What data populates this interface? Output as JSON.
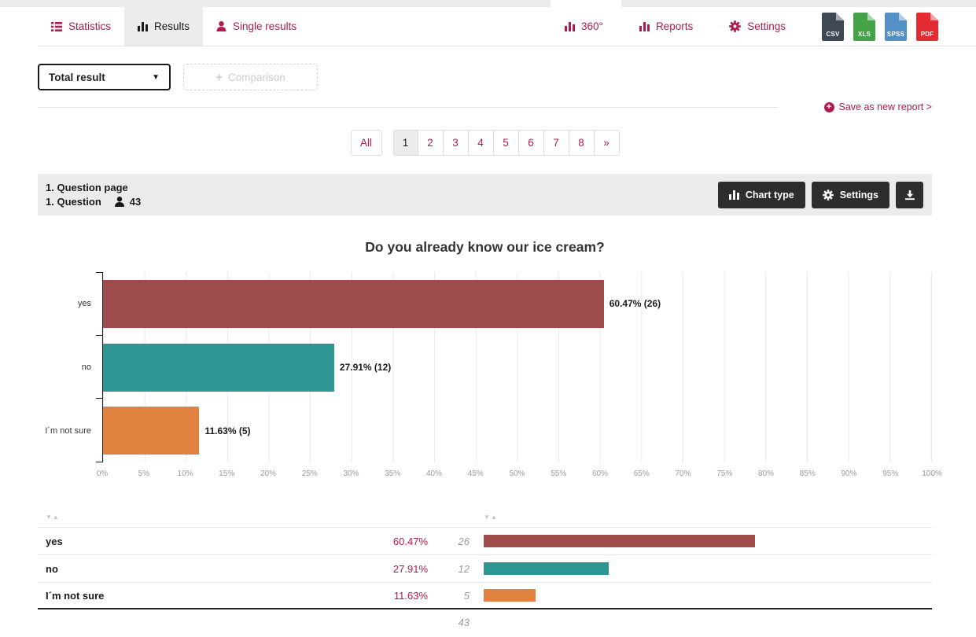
{
  "brand_color": "#b01a4e",
  "header": {
    "tabs": [
      {
        "label": "Statistics",
        "icon": "list-icon"
      },
      {
        "label": "Results",
        "icon": "bar-chart-icon",
        "active": true
      },
      {
        "label": "Single results",
        "icon": "person-icon"
      }
    ],
    "nav_items": [
      {
        "label": "360°",
        "icon": "bar-chart-icon"
      },
      {
        "label": "Reports",
        "icon": "bar-chart-icon"
      },
      {
        "label": "Settings",
        "icon": "gear-icon"
      }
    ],
    "export_buttons": [
      {
        "label": "CSV",
        "color": "#414855"
      },
      {
        "label": "XLS",
        "color": "#44a347"
      },
      {
        "label": "SPSS",
        "color": "#5390c5"
      },
      {
        "label": "PDF",
        "color": "#e52b32"
      }
    ]
  },
  "filters": {
    "selected": "Total result",
    "comparison_label": "Comparison"
  },
  "save_report_label": "Save as new report >",
  "pagination": {
    "all_label": "All",
    "pages": [
      "1",
      "2",
      "3",
      "4",
      "5",
      "6",
      "7",
      "8",
      "»"
    ],
    "active": "1"
  },
  "question": {
    "page_title": "1. Question page",
    "question_title": "1. Question",
    "respondents": "43",
    "chart_type_label": "Chart type",
    "settings_label": "Settings"
  },
  "chart_data": {
    "type": "bar",
    "orientation": "horizontal",
    "title": "Do you already know our ice cream?",
    "categories": [
      "yes",
      "no",
      "I´m not sure"
    ],
    "series": [
      {
        "name": "Total result",
        "values_percent": [
          60.47,
          27.91,
          11.63
        ],
        "counts": [
          26,
          12,
          5
        ]
      }
    ],
    "data_labels": [
      "60.47% (26)",
      "27.91% (12)",
      "11.63% (5)"
    ],
    "bar_colors": [
      "#9d4c4b",
      "#2d9693",
      "#e08140"
    ],
    "x_ticks": [
      "0%",
      "5%",
      "10%",
      "15%",
      "20%",
      "25%",
      "30%",
      "35%",
      "40%",
      "45%",
      "50%",
      "55%",
      "60%",
      "65%",
      "70%",
      "75%",
      "80%",
      "85%",
      "90%",
      "95%",
      "100%"
    ],
    "xlim": [
      0,
      100
    ],
    "grid": true,
    "legend": false
  },
  "table": {
    "rows": [
      {
        "label": "yes",
        "percent": "60.47%",
        "count": "26",
        "value": 60.47,
        "color": "#9d4c4b"
      },
      {
        "label": "no",
        "percent": "27.91%",
        "count": "12",
        "value": 27.91,
        "color": "#2d9693"
      },
      {
        "label": "I´m not sure",
        "percent": "11.63%",
        "count": "5",
        "value": 11.63,
        "color": "#e08140"
      }
    ],
    "total": "43"
  }
}
